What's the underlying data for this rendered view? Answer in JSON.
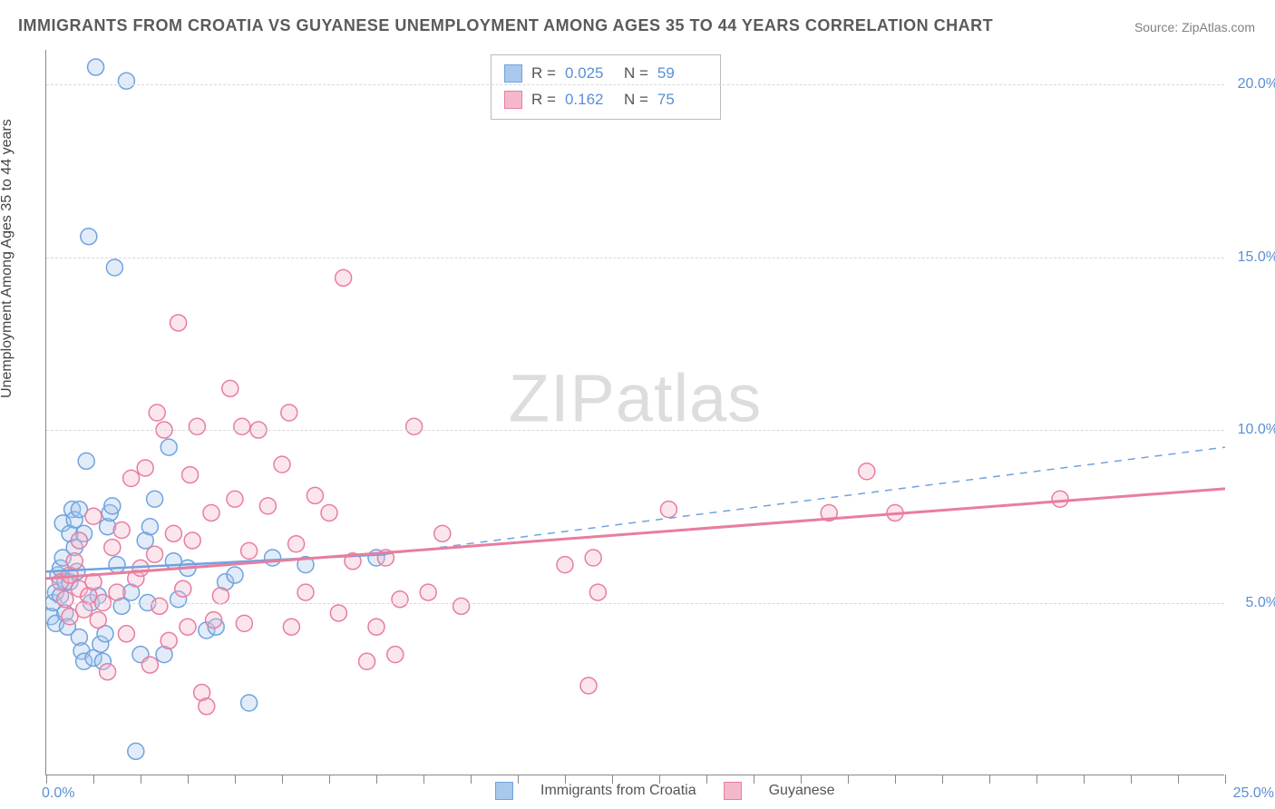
{
  "chart": {
    "type": "scatter",
    "title": "IMMIGRANTS FROM CROATIA VS GUYANESE UNEMPLOYMENT AMONG AGES 35 TO 44 YEARS CORRELATION CHART",
    "source": "Source: ZipAtlas.com",
    "ylabel": "Unemployment Among Ages 35 to 44 years",
    "watermark_a": "ZIP",
    "watermark_b": "atlas",
    "background_color": "#ffffff",
    "grid_color": "#d8d8d8",
    "axis_color": "#888888",
    "text_color": "#5a5a5a",
    "tick_label_color": "#5b8fd6",
    "title_fontsize": 18,
    "label_fontsize": 16,
    "xlim": [
      0,
      25
    ],
    "ylim": [
      0,
      21
    ],
    "x_tick_step": 1,
    "y_ticks": [
      5,
      10,
      15,
      20
    ],
    "y_tick_labels": [
      "5.0%",
      "10.0%",
      "15.0%",
      "20.0%"
    ],
    "x_start_label": "0.0%",
    "x_end_label": "25.0%",
    "marker_radius": 9,
    "series": [
      {
        "name": "Immigrants from Croatia",
        "legend_label": "Immigrants from Croatia",
        "color_stroke": "#6fa3e0",
        "color_fill": "#a8c8ec",
        "R": "0.025",
        "N": "59",
        "trend_solid": {
          "x1": 0,
          "y1": 5.9,
          "x2": 7.2,
          "y2": 6.4
        },
        "trend_dash": {
          "x1": 7.2,
          "y1": 6.4,
          "x2": 25,
          "y2": 9.5
        },
        "trend_width": 2.5,
        "points": [
          [
            0.1,
            4.6
          ],
          [
            0.15,
            5.0
          ],
          [
            0.2,
            4.4
          ],
          [
            0.2,
            5.3
          ],
          [
            0.25,
            5.8
          ],
          [
            0.3,
            6.0
          ],
          [
            0.3,
            5.2
          ],
          [
            0.35,
            6.3
          ],
          [
            0.35,
            7.3
          ],
          [
            0.4,
            5.6
          ],
          [
            0.4,
            4.7
          ],
          [
            0.45,
            4.3
          ],
          [
            0.5,
            5.6
          ],
          [
            0.5,
            7.0
          ],
          [
            0.55,
            7.7
          ],
          [
            0.6,
            6.6
          ],
          [
            0.6,
            7.4
          ],
          [
            0.65,
            5.9
          ],
          [
            0.7,
            7.7
          ],
          [
            0.7,
            4.0
          ],
          [
            0.75,
            3.6
          ],
          [
            0.8,
            3.3
          ],
          [
            0.8,
            7.0
          ],
          [
            0.85,
            9.1
          ],
          [
            0.9,
            15.6
          ],
          [
            0.95,
            5.0
          ],
          [
            1.0,
            3.4
          ],
          [
            1.05,
            20.5
          ],
          [
            1.1,
            5.2
          ],
          [
            1.15,
            3.8
          ],
          [
            1.2,
            3.3
          ],
          [
            1.25,
            4.1
          ],
          [
            1.3,
            7.2
          ],
          [
            1.35,
            7.6
          ],
          [
            1.4,
            7.8
          ],
          [
            1.45,
            14.7
          ],
          [
            1.5,
            6.1
          ],
          [
            1.6,
            4.9
          ],
          [
            1.7,
            20.1
          ],
          [
            1.8,
            5.3
          ],
          [
            1.9,
            0.7
          ],
          [
            2.0,
            3.5
          ],
          [
            2.1,
            6.8
          ],
          [
            2.15,
            5.0
          ],
          [
            2.2,
            7.2
          ],
          [
            2.3,
            8.0
          ],
          [
            2.5,
            3.5
          ],
          [
            2.6,
            9.5
          ],
          [
            2.7,
            6.2
          ],
          [
            2.8,
            5.1
          ],
          [
            3.0,
            6.0
          ],
          [
            3.4,
            4.2
          ],
          [
            3.6,
            4.3
          ],
          [
            3.8,
            5.6
          ],
          [
            4.0,
            5.8
          ],
          [
            4.3,
            2.1
          ],
          [
            4.8,
            6.3
          ],
          [
            5.5,
            6.1
          ],
          [
            7.0,
            6.3
          ]
        ]
      },
      {
        "name": "Guyanese",
        "legend_label": "Guyanese",
        "color_stroke": "#e87da0",
        "color_fill": "#f5b8cb",
        "R": "0.162",
        "N": "75",
        "trend_solid": {
          "x1": 0,
          "y1": 5.7,
          "x2": 25,
          "y2": 8.3
        },
        "trend_dash": null,
        "trend_width": 3,
        "points": [
          [
            0.3,
            5.6
          ],
          [
            0.4,
            5.1
          ],
          [
            0.5,
            4.6
          ],
          [
            0.5,
            5.8
          ],
          [
            0.6,
            6.2
          ],
          [
            0.7,
            5.4
          ],
          [
            0.7,
            6.8
          ],
          [
            0.8,
            4.8
          ],
          [
            0.9,
            5.2
          ],
          [
            1.0,
            5.6
          ],
          [
            1.0,
            7.5
          ],
          [
            1.1,
            4.5
          ],
          [
            1.2,
            5.0
          ],
          [
            1.3,
            3.0
          ],
          [
            1.4,
            6.6
          ],
          [
            1.5,
            5.3
          ],
          [
            1.6,
            7.1
          ],
          [
            1.7,
            4.1
          ],
          [
            1.8,
            8.6
          ],
          [
            1.9,
            5.7
          ],
          [
            2.0,
            6.0
          ],
          [
            2.1,
            8.9
          ],
          [
            2.2,
            3.2
          ],
          [
            2.3,
            6.4
          ],
          [
            2.4,
            4.9
          ],
          [
            2.5,
            10.0
          ],
          [
            2.6,
            3.9
          ],
          [
            2.7,
            7.0
          ],
          [
            2.8,
            13.1
          ],
          [
            2.9,
            5.4
          ],
          [
            3.0,
            4.3
          ],
          [
            3.1,
            6.8
          ],
          [
            3.2,
            10.1
          ],
          [
            3.3,
            2.4
          ],
          [
            3.4,
            2.0
          ],
          [
            3.5,
            7.6
          ],
          [
            3.7,
            5.2
          ],
          [
            3.9,
            11.2
          ],
          [
            4.0,
            8.0
          ],
          [
            4.2,
            4.4
          ],
          [
            4.3,
            6.5
          ],
          [
            4.5,
            10.0
          ],
          [
            4.7,
            7.8
          ],
          [
            5.0,
            9.0
          ],
          [
            5.2,
            4.3
          ],
          [
            5.3,
            6.7
          ],
          [
            5.5,
            5.3
          ],
          [
            5.7,
            8.1
          ],
          [
            6.0,
            7.6
          ],
          [
            6.2,
            4.7
          ],
          [
            6.3,
            14.4
          ],
          [
            6.5,
            6.2
          ],
          [
            6.8,
            3.3
          ],
          [
            7.0,
            4.3
          ],
          [
            7.2,
            6.3
          ],
          [
            7.4,
            3.5
          ],
          [
            7.5,
            5.1
          ],
          [
            7.8,
            10.1
          ],
          [
            8.1,
            5.3
          ],
          [
            8.4,
            7.0
          ],
          [
            8.8,
            4.9
          ],
          [
            11.0,
            6.1
          ],
          [
            11.5,
            2.6
          ],
          [
            11.6,
            6.3
          ],
          [
            11.7,
            5.3
          ],
          [
            13.2,
            7.7
          ],
          [
            16.6,
            7.6
          ],
          [
            17.4,
            8.8
          ],
          [
            18.0,
            7.6
          ],
          [
            21.5,
            8.0
          ],
          [
            2.35,
            10.5
          ],
          [
            3.05,
            8.7
          ],
          [
            4.15,
            10.1
          ],
          [
            5.15,
            10.5
          ],
          [
            3.55,
            4.5
          ]
        ]
      }
    ],
    "stats_labels": {
      "R": "R =",
      "N": "N ="
    }
  }
}
